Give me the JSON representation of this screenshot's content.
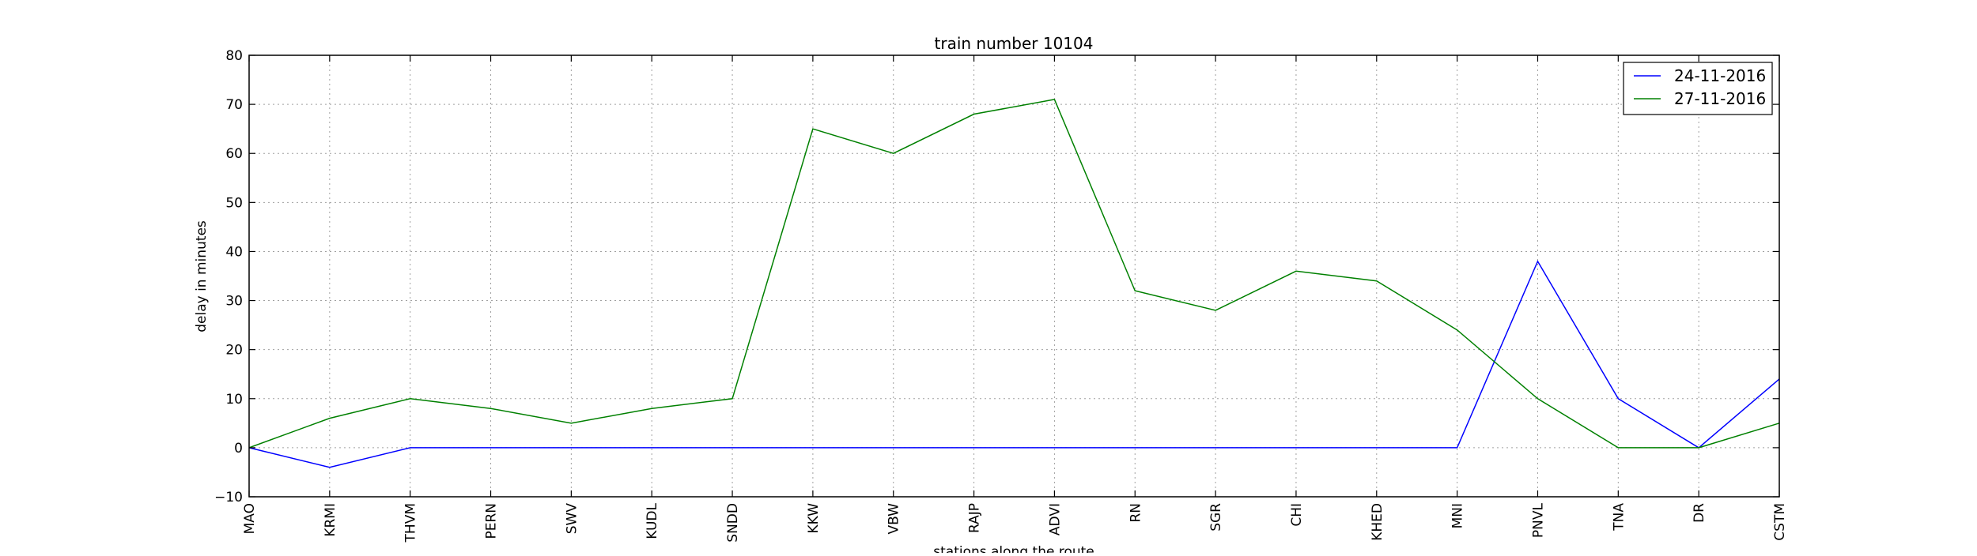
{
  "chart_data": {
    "type": "line",
    "title": "train number 10104",
    "xlabel": "stations along the route",
    "ylabel": "delay in minutes",
    "categories": [
      "MAO",
      "KRMI",
      "THVM",
      "PERN",
      "SWV",
      "KUDL",
      "SNDD",
      "KKW",
      "VBW",
      "RAJP",
      "ADVI",
      "RN",
      "SGR",
      "CHI",
      "KHED",
      "MNI",
      "PNVL",
      "TNA",
      "DR",
      "CSTM"
    ],
    "series": [
      {
        "name": "24-11-2016",
        "color": "#0000ff",
        "values": [
          0,
          -4,
          0,
          0,
          0,
          0,
          0,
          0,
          0,
          0,
          0,
          0,
          0,
          0,
          0,
          0,
          38,
          10,
          0,
          14
        ]
      },
      {
        "name": "27-11-2016",
        "color": "#008000",
        "values": [
          0,
          6,
          10,
          8,
          5,
          8,
          10,
          65,
          60,
          68,
          71,
          32,
          28,
          36,
          34,
          24,
          10,
          0,
          0,
          5
        ]
      }
    ],
    "ylim": [
      -10,
      80
    ],
    "yticks": [
      -10,
      0,
      10,
      20,
      30,
      40,
      50,
      60,
      70,
      80
    ],
    "grid": true,
    "legend_position": "top-right"
  }
}
